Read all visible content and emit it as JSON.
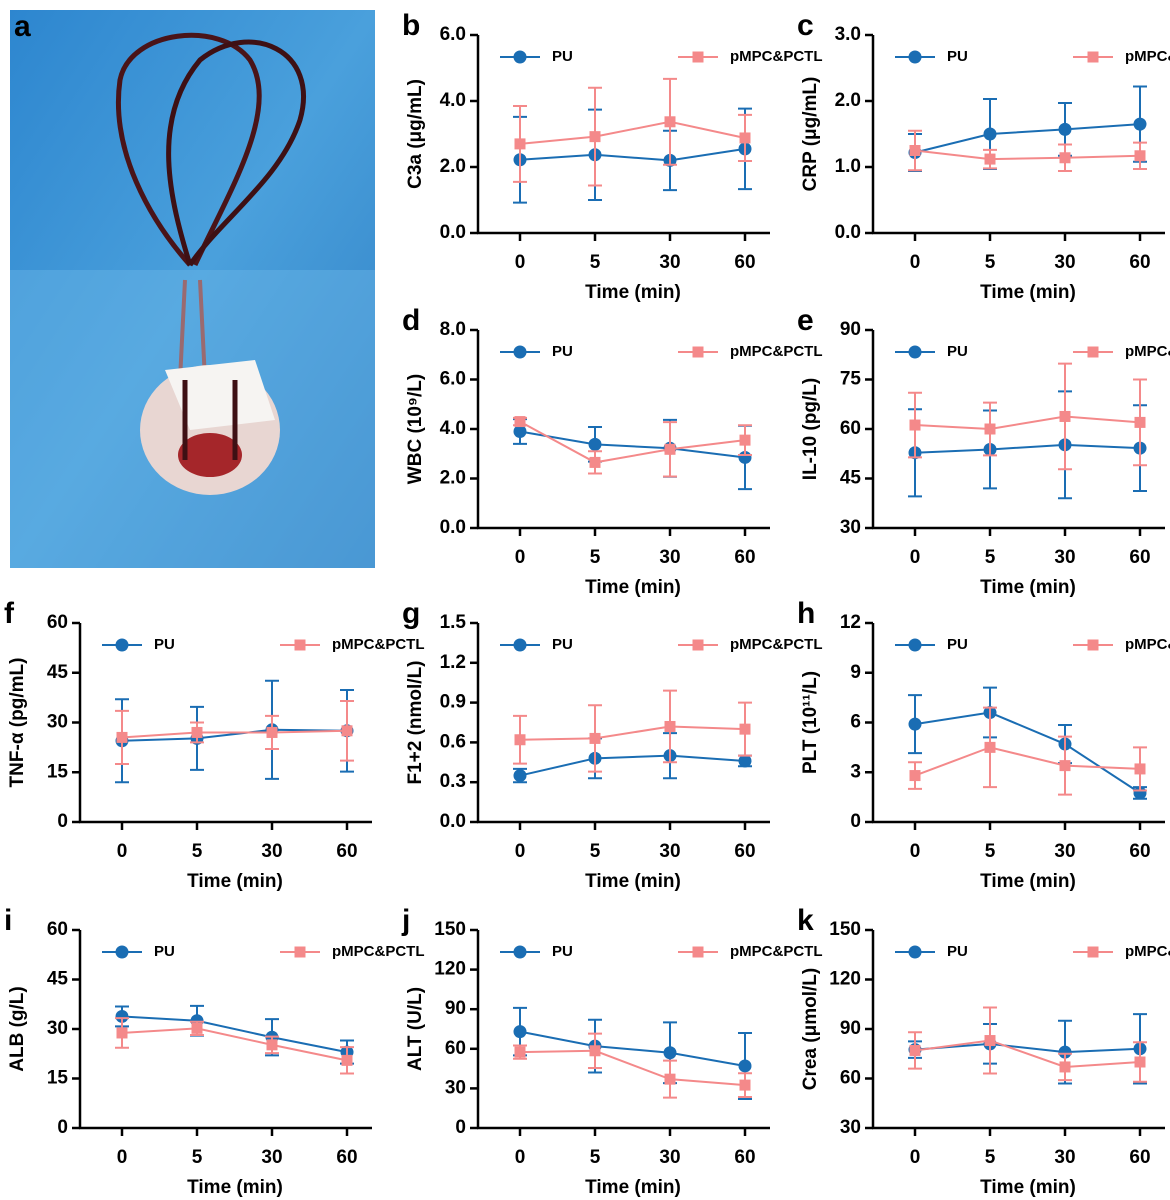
{
  "photo": {
    "label": "a"
  },
  "chart_data": [
    {
      "type": "line",
      "label": "b",
      "ylabel": "C3a (μg/mL)",
      "xlabel": "Time (min)",
      "categories": [
        "0",
        "5",
        "30",
        "60"
      ],
      "ylim": [
        0,
        6
      ],
      "yticks": [
        {
          "value": 0,
          "label": "0.0"
        },
        {
          "value": 2,
          "label": "2.0"
        },
        {
          "value": 4,
          "label": "4.0"
        },
        {
          "value": 6,
          "label": "6.0"
        }
      ],
      "legend": "top",
      "series": [
        {
          "name": "PU",
          "color": "#1a6db3",
          "values": [
            2.22,
            2.37,
            2.2,
            2.55
          ],
          "errors": [
            1.3,
            1.37,
            0.9,
            1.22
          ]
        },
        {
          "name": "pMPC&PCTL",
          "color": "#f4898a",
          "values": [
            2.7,
            2.92,
            3.37,
            2.88
          ],
          "errors": [
            1.15,
            1.48,
            1.3,
            0.7
          ]
        }
      ]
    },
    {
      "type": "line",
      "label": "c",
      "ylabel": "CRP (μg/mL)",
      "xlabel": "Time (min)",
      "categories": [
        "0",
        "5",
        "30",
        "60"
      ],
      "ylim": [
        0,
        3
      ],
      "yticks": [
        {
          "value": 0,
          "label": "0.0"
        },
        {
          "value": 1,
          "label": "1.0"
        },
        {
          "value": 2,
          "label": "2.0"
        },
        {
          "value": 3,
          "label": "3.0"
        }
      ],
      "legend": "top",
      "series": [
        {
          "name": "PU",
          "color": "#1a6db3",
          "values": [
            1.22,
            1.5,
            1.57,
            1.65
          ],
          "errors": [
            0.28,
            0.53,
            0.4,
            0.57
          ]
        },
        {
          "name": "pMPC&PCTL",
          "color": "#f4898a",
          "values": [
            1.25,
            1.12,
            1.14,
            1.17
          ],
          "errors": [
            0.3,
            0.14,
            0.2,
            0.2
          ]
        }
      ]
    },
    {
      "type": "line",
      "label": "d",
      "ylabel": "WBC (10⁹/L)",
      "xlabel": "Time (min)",
      "categories": [
        "0",
        "5",
        "30",
        "60"
      ],
      "ylim": [
        0,
        8
      ],
      "yticks": [
        {
          "value": 0,
          "label": "0.0"
        },
        {
          "value": 2,
          "label": "2.0"
        },
        {
          "value": 4,
          "label": "4.0"
        },
        {
          "value": 6,
          "label": "6.0"
        },
        {
          "value": 8,
          "label": "8.0"
        }
      ],
      "legend": "top",
      "series": [
        {
          "name": "PU",
          "color": "#1a6db3",
          "values": [
            3.9,
            3.38,
            3.22,
            2.85
          ],
          "errors": [
            0.5,
            0.7,
            1.15,
            1.28
          ]
        },
        {
          "name": "pMPC&PCTL",
          "color": "#f4898a",
          "values": [
            4.3,
            2.65,
            3.18,
            3.55
          ],
          "errors": [
            0.15,
            0.45,
            1.1,
            0.6
          ]
        }
      ]
    },
    {
      "type": "line",
      "label": "e",
      "ylabel": "IL-10 (pg/L)",
      "xlabel": "Time (min)",
      "categories": [
        "0",
        "5",
        "30",
        "60"
      ],
      "ylim": [
        30,
        90
      ],
      "yticks": [
        30,
        45,
        60,
        75,
        90
      ],
      "legend": "top",
      "series": [
        {
          "name": "PU",
          "color": "#1a6db3",
          "values": [
            52.8,
            53.8,
            55.2,
            54.2
          ],
          "errors": [
            13.2,
            11.8,
            16.2,
            13
          ]
        },
        {
          "name": "pMPC&PCTL",
          "color": "#f4898a",
          "values": [
            61.2,
            60,
            63.8,
            62
          ],
          "errors": [
            9.8,
            8,
            16,
            13
          ]
        }
      ]
    },
    {
      "type": "line",
      "label": "f",
      "ylabel": "TNF-α (pg/mL)",
      "xlabel": "Time (min)",
      "categories": [
        "0",
        "5",
        "30",
        "60"
      ],
      "ylim": [
        0,
        60
      ],
      "yticks": [
        0,
        15,
        30,
        45,
        60
      ],
      "legend": "top",
      "series": [
        {
          "name": "PU",
          "color": "#1a6db3",
          "values": [
            24.5,
            25.2,
            27.8,
            27.5
          ],
          "errors": [
            12.5,
            9.5,
            14.8,
            12.3
          ]
        },
        {
          "name": "pMPC&PCTL",
          "color": "#f4898a",
          "values": [
            25.5,
            27,
            27,
            27.5
          ],
          "errors": [
            8,
            3,
            5,
            9
          ]
        }
      ]
    },
    {
      "type": "line",
      "label": "g",
      "ylabel": "F1+2 (nmol/L)",
      "xlabel": "Time (min)",
      "categories": [
        "0",
        "5",
        "30",
        "60"
      ],
      "ylim": [
        0,
        1.5
      ],
      "yticks": [
        {
          "value": 0,
          "label": "0.0"
        },
        0.3,
        0.6,
        0.9,
        1.2,
        1.5
      ],
      "legend": "top",
      "series": [
        {
          "name": "PU",
          "color": "#1a6db3",
          "values": [
            0.35,
            0.48,
            0.5,
            0.46
          ],
          "errors": [
            0.05,
            0.15,
            0.17,
            0.04
          ]
        },
        {
          "name": "pMPC&PCTL",
          "color": "#f4898a",
          "values": [
            0.62,
            0.63,
            0.72,
            0.7
          ],
          "errors": [
            0.18,
            0.25,
            0.27,
            0.2
          ]
        }
      ]
    },
    {
      "type": "line",
      "label": "h",
      "ylabel": "PLT (10¹¹/L)",
      "xlabel": "Time (min)",
      "categories": [
        "0",
        "5",
        "30",
        "60"
      ],
      "ylim": [
        0,
        12
      ],
      "yticks": [
        0,
        3,
        6,
        9,
        12
      ],
      "legend": "top",
      "series": [
        {
          "name": "PU",
          "color": "#1a6db3",
          "values": [
            5.9,
            6.6,
            4.7,
            1.75
          ],
          "errors": [
            1.75,
            1.5,
            1.15,
            0.35
          ]
        },
        {
          "name": "pMPC&PCTL",
          "color": "#f4898a",
          "values": [
            2.8,
            4.5,
            3.4,
            3.2
          ],
          "errors": [
            0.8,
            2.4,
            1.75,
            1.3
          ]
        }
      ]
    },
    {
      "type": "line",
      "label": "i",
      "ylabel": "ALB (g/L)",
      "xlabel": "Time (min)",
      "categories": [
        "0",
        "5",
        "30",
        "60"
      ],
      "ylim": [
        0,
        60
      ],
      "yticks": [
        0,
        15,
        30,
        45,
        60
      ],
      "legend": "top",
      "series": [
        {
          "name": "PU",
          "color": "#1a6db3",
          "values": [
            33.8,
            32.5,
            27.5,
            23
          ],
          "errors": [
            3,
            4.5,
            5.5,
            3.5
          ]
        },
        {
          "name": "pMPC&PCTL",
          "color": "#f4898a",
          "values": [
            28.8,
            30.2,
            25.2,
            20.5
          ],
          "errors": [
            4.5,
            2,
            2.5,
            4
          ]
        }
      ]
    },
    {
      "type": "line",
      "label": "j",
      "ylabel": "ALT (U/L)",
      "xlabel": "Time (min)",
      "categories": [
        "0",
        "5",
        "30",
        "60"
      ],
      "ylim": [
        0,
        150
      ],
      "yticks": [
        0,
        30,
        60,
        90,
        120,
        150
      ],
      "legend": "top",
      "series": [
        {
          "name": "PU",
          "color": "#1a6db3",
          "values": [
            73,
            62,
            57,
            47
          ],
          "errors": [
            18,
            20,
            23,
            25
          ]
        },
        {
          "name": "pMPC&PCTL",
          "color": "#f4898a",
          "values": [
            57.5,
            58.5,
            37,
            32.5
          ],
          "errors": [
            5,
            13,
            14,
            9
          ]
        }
      ]
    },
    {
      "type": "line",
      "label": "k",
      "ylabel": "Crea (μmol/L)",
      "xlabel": "Time (min)",
      "categories": [
        "0",
        "5",
        "30",
        "60"
      ],
      "ylim": [
        30,
        150
      ],
      "yticks": [
        30,
        60,
        90,
        120,
        150
      ],
      "legend": "top",
      "series": [
        {
          "name": "PU",
          "color": "#1a6db3",
          "values": [
            77.5,
            81,
            76,
            78
          ],
          "errors": [
            5,
            12,
            19,
            21
          ]
        },
        {
          "name": "pMPC&PCTL",
          "color": "#f4898a",
          "values": [
            77,
            83,
            67,
            70
          ],
          "errors": [
            11,
            20,
            8,
            12
          ]
        }
      ]
    }
  ]
}
